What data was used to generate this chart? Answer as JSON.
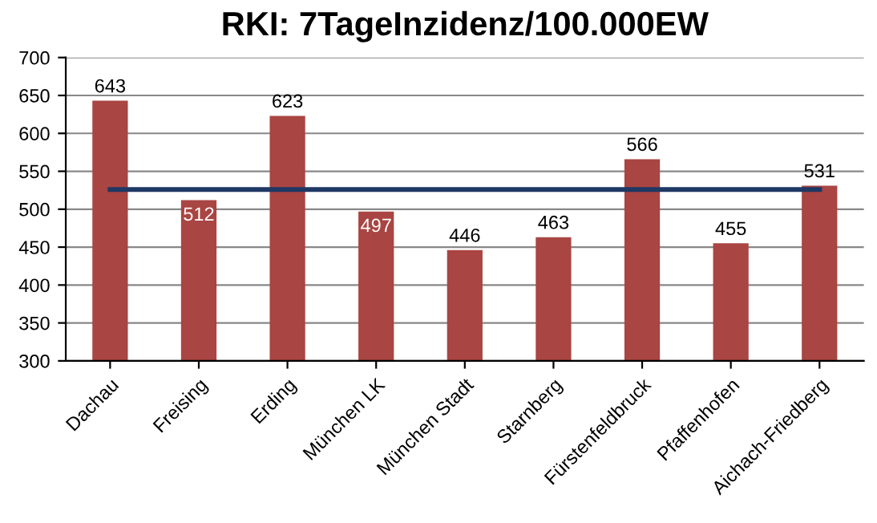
{
  "chart_data": {
    "type": "bar",
    "title": "RKI: 7TageInzidenz/100.000EW",
    "categories": [
      "Dachau",
      "Freising",
      "Erding",
      "München LK",
      "München Stadt",
      "Starnberg",
      "Fürstenfeldbruck",
      "Pfaffenhofen",
      "Aichach-Friedberg"
    ],
    "series": [
      {
        "color": "#a94542",
        "values": [
          643,
          512,
          623,
          497,
          446,
          463,
          566,
          455,
          531
        ],
        "data_labels": true
      },
      {
        "type": "line",
        "color": "#1f3864",
        "values": [
          526,
          526,
          526,
          526,
          526,
          526,
          526,
          526,
          526
        ]
      }
    ],
    "ylim": [
      300,
      700
    ],
    "yticks": [
      300,
      350,
      400,
      450,
      500,
      550,
      600,
      650,
      700
    ],
    "grid": "y",
    "legend": false
  }
}
